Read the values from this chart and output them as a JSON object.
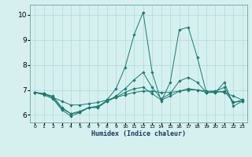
{
  "xlabel": "Humidex (Indice chaleur)",
  "bg_color": "#d6f0f0",
  "line_color": "#1a7a6e",
  "grid_color": "#b0d8d8",
  "xlim": [
    -0.5,
    23.5
  ],
  "ylim": [
    5.7,
    10.4
  ],
  "yticks": [
    6,
    7,
    8,
    9,
    10
  ],
  "xticks": [
    0,
    1,
    2,
    3,
    4,
    5,
    6,
    7,
    8,
    9,
    10,
    11,
    12,
    13,
    14,
    15,
    16,
    17,
    18,
    19,
    20,
    21,
    22,
    23
  ],
  "series": [
    {
      "x": [
        0,
        1,
        2,
        3,
        4,
        5,
        6,
        7,
        8,
        9,
        10,
        11,
        12,
        13,
        14,
        15,
        16,
        17,
        18,
        19,
        20,
        21,
        22,
        23
      ],
      "y": [
        6.9,
        6.8,
        6.65,
        6.2,
        5.95,
        6.1,
        6.3,
        6.3,
        6.6,
        7.05,
        7.9,
        9.2,
        10.1,
        7.7,
        6.55,
        7.3,
        9.4,
        9.5,
        8.3,
        6.9,
        6.9,
        7.3,
        6.35,
        6.55
      ]
    },
    {
      "x": [
        0,
        1,
        2,
        3,
        4,
        5,
        6,
        7,
        8,
        9,
        10,
        11,
        12,
        13,
        14,
        15,
        16,
        17,
        18,
        19,
        20,
        21,
        22,
        23
      ],
      "y": [
        6.9,
        6.85,
        6.7,
        6.55,
        6.4,
        6.4,
        6.45,
        6.5,
        6.6,
        6.7,
        6.8,
        6.9,
        6.95,
        6.95,
        6.9,
        6.9,
        6.95,
        7.0,
        7.0,
        6.95,
        6.95,
        6.9,
        6.75,
        6.6
      ]
    },
    {
      "x": [
        0,
        1,
        2,
        3,
        4,
        5,
        6,
        7,
        8,
        9,
        10,
        11,
        12,
        13,
        14,
        15,
        16,
        17,
        18,
        19,
        20,
        21,
        22,
        23
      ],
      "y": [
        6.9,
        6.85,
        6.7,
        6.25,
        6.05,
        6.15,
        6.3,
        6.35,
        6.55,
        6.75,
        7.05,
        7.4,
        7.7,
        7.1,
        6.65,
        6.85,
        7.35,
        7.5,
        7.3,
        6.9,
        6.95,
        7.1,
        6.5,
        6.6
      ]
    },
    {
      "x": [
        0,
        1,
        2,
        3,
        4,
        5,
        6,
        7,
        8,
        9,
        10,
        11,
        12,
        13,
        14,
        15,
        16,
        17,
        18,
        19,
        20,
        21,
        22,
        23
      ],
      "y": [
        6.9,
        6.85,
        6.75,
        6.3,
        6.05,
        6.1,
        6.3,
        6.3,
        6.55,
        6.7,
        6.9,
        7.05,
        7.1,
        6.85,
        6.6,
        6.75,
        6.95,
        7.05,
        7.0,
        6.9,
        6.9,
        6.95,
        6.5,
        6.55
      ]
    }
  ]
}
